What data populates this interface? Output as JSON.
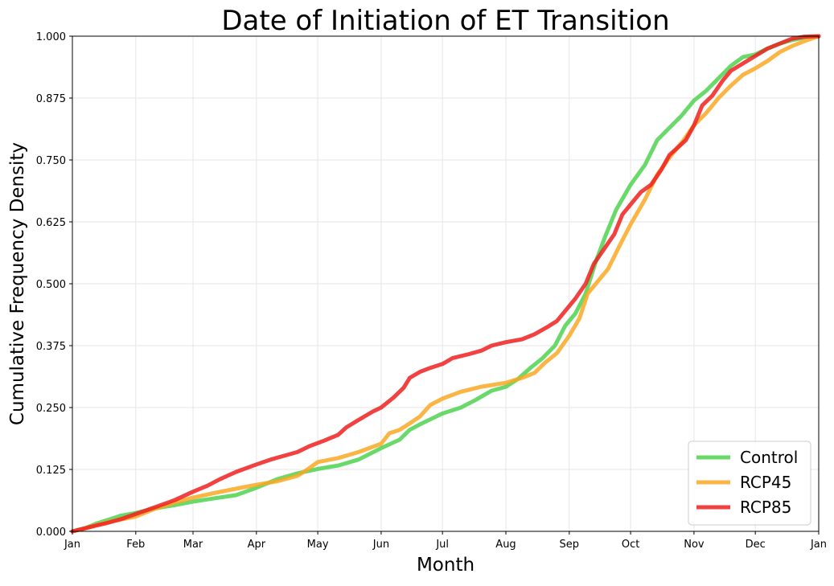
{
  "chart_data": {
    "type": "line",
    "title": "Date of Initiation of ET Transition",
    "xlabel": "Month",
    "ylabel": "Cumulative Frequency Density",
    "x_unit": "day_of_year",
    "xlim": [
      0,
      365
    ],
    "ylim": [
      0.0,
      1.0
    ],
    "grid": true,
    "legend_position": "lower right",
    "x_ticks": [
      {
        "value": 0,
        "label": "Jan"
      },
      {
        "value": 31,
        "label": "Feb"
      },
      {
        "value": 59,
        "label": "Mar"
      },
      {
        "value": 90,
        "label": "Apr"
      },
      {
        "value": 120,
        "label": "May"
      },
      {
        "value": 151,
        "label": "Jun"
      },
      {
        "value": 181,
        "label": "Jul"
      },
      {
        "value": 212,
        "label": "Aug"
      },
      {
        "value": 243,
        "label": "Sep"
      },
      {
        "value": 273,
        "label": "Oct"
      },
      {
        "value": 304,
        "label": "Nov"
      },
      {
        "value": 334,
        "label": "Dec"
      },
      {
        "value": 365,
        "label": "Jan"
      }
    ],
    "y_ticks": [
      {
        "value": 0.0,
        "label": "0.000"
      },
      {
        "value": 0.125,
        "label": "0.125"
      },
      {
        "value": 0.25,
        "label": "0.250"
      },
      {
        "value": 0.375,
        "label": "0.375"
      },
      {
        "value": 0.5,
        "label": "0.500"
      },
      {
        "value": 0.625,
        "label": "0.625"
      },
      {
        "value": 0.75,
        "label": "0.750"
      },
      {
        "value": 0.875,
        "label": "0.875"
      },
      {
        "value": 1.0,
        "label": "1.000"
      }
    ],
    "series": [
      {
        "name": "Control",
        "color": "#4fd24f",
        "points": [
          [
            0,
            0.0
          ],
          [
            6,
            0.006
          ],
          [
            12,
            0.016
          ],
          [
            18,
            0.024
          ],
          [
            24,
            0.032
          ],
          [
            31,
            0.037
          ],
          [
            40,
            0.046
          ],
          [
            50,
            0.053
          ],
          [
            59,
            0.06
          ],
          [
            70,
            0.067
          ],
          [
            80,
            0.073
          ],
          [
            90,
            0.088
          ],
          [
            100,
            0.105
          ],
          [
            110,
            0.117
          ],
          [
            120,
            0.126
          ],
          [
            130,
            0.133
          ],
          [
            140,
            0.145
          ],
          [
            151,
            0.168
          ],
          [
            160,
            0.185
          ],
          [
            165,
            0.205
          ],
          [
            170,
            0.216
          ],
          [
            181,
            0.238
          ],
          [
            190,
            0.25
          ],
          [
            197,
            0.265
          ],
          [
            205,
            0.284
          ],
          [
            212,
            0.292
          ],
          [
            218,
            0.308
          ],
          [
            224,
            0.33
          ],
          [
            230,
            0.35
          ],
          [
            236,
            0.375
          ],
          [
            241,
            0.415
          ],
          [
            246,
            0.44
          ],
          [
            251,
            0.48
          ],
          [
            256,
            0.545
          ],
          [
            261,
            0.6
          ],
          [
            266,
            0.65
          ],
          [
            273,
            0.7
          ],
          [
            280,
            0.74
          ],
          [
            286,
            0.79
          ],
          [
            292,
            0.815
          ],
          [
            298,
            0.84
          ],
          [
            304,
            0.87
          ],
          [
            310,
            0.89
          ],
          [
            316,
            0.915
          ],
          [
            322,
            0.94
          ],
          [
            328,
            0.958
          ],
          [
            334,
            0.963
          ],
          [
            340,
            0.975
          ],
          [
            346,
            0.985
          ],
          [
            352,
            0.992
          ],
          [
            358,
            0.997
          ],
          [
            365,
            1.0
          ]
        ]
      },
      {
        "name": "RCP45",
        "color": "#f9a825",
        "points": [
          [
            0,
            0.0
          ],
          [
            6,
            0.006
          ],
          [
            12,
            0.013
          ],
          [
            18,
            0.019
          ],
          [
            24,
            0.024
          ],
          [
            31,
            0.03
          ],
          [
            40,
            0.045
          ],
          [
            50,
            0.058
          ],
          [
            59,
            0.068
          ],
          [
            70,
            0.078
          ],
          [
            80,
            0.086
          ],
          [
            90,
            0.094
          ],
          [
            100,
            0.101
          ],
          [
            110,
            0.112
          ],
          [
            115,
            0.125
          ],
          [
            120,
            0.14
          ],
          [
            130,
            0.148
          ],
          [
            140,
            0.16
          ],
          [
            151,
            0.177
          ],
          [
            155,
            0.198
          ],
          [
            160,
            0.205
          ],
          [
            165,
            0.218
          ],
          [
            170,
            0.232
          ],
          [
            175,
            0.255
          ],
          [
            181,
            0.268
          ],
          [
            190,
            0.282
          ],
          [
            200,
            0.292
          ],
          [
            212,
            0.3
          ],
          [
            220,
            0.31
          ],
          [
            226,
            0.32
          ],
          [
            231,
            0.34
          ],
          [
            237,
            0.36
          ],
          [
            243,
            0.395
          ],
          [
            248,
            0.43
          ],
          [
            252,
            0.48
          ],
          [
            257,
            0.505
          ],
          [
            262,
            0.53
          ],
          [
            268,
            0.58
          ],
          [
            273,
            0.62
          ],
          [
            280,
            0.67
          ],
          [
            286,
            0.72
          ],
          [
            292,
            0.755
          ],
          [
            298,
            0.785
          ],
          [
            304,
            0.82
          ],
          [
            310,
            0.845
          ],
          [
            316,
            0.875
          ],
          [
            322,
            0.9
          ],
          [
            328,
            0.922
          ],
          [
            334,
            0.935
          ],
          [
            340,
            0.95
          ],
          [
            346,
            0.968
          ],
          [
            352,
            0.98
          ],
          [
            358,
            0.99
          ],
          [
            365,
            1.0
          ]
        ]
      },
      {
        "name": "RCP85",
        "color": "#f02020",
        "points": [
          [
            0,
            0.0
          ],
          [
            6,
            0.006
          ],
          [
            12,
            0.012
          ],
          [
            18,
            0.018
          ],
          [
            24,
            0.025
          ],
          [
            31,
            0.035
          ],
          [
            40,
            0.048
          ],
          [
            50,
            0.063
          ],
          [
            59,
            0.08
          ],
          [
            66,
            0.092
          ],
          [
            72,
            0.105
          ],
          [
            80,
            0.12
          ],
          [
            90,
            0.135
          ],
          [
            97,
            0.145
          ],
          [
            103,
            0.152
          ],
          [
            110,
            0.16
          ],
          [
            116,
            0.172
          ],
          [
            123,
            0.183
          ],
          [
            130,
            0.195
          ],
          [
            134,
            0.21
          ],
          [
            140,
            0.225
          ],
          [
            147,
            0.242
          ],
          [
            151,
            0.25
          ],
          [
            157,
            0.27
          ],
          [
            162,
            0.29
          ],
          [
            165,
            0.31
          ],
          [
            170,
            0.322
          ],
          [
            175,
            0.33
          ],
          [
            181,
            0.338
          ],
          [
            186,
            0.35
          ],
          [
            194,
            0.358
          ],
          [
            200,
            0.365
          ],
          [
            205,
            0.375
          ],
          [
            212,
            0.382
          ],
          [
            220,
            0.388
          ],
          [
            226,
            0.398
          ],
          [
            232,
            0.412
          ],
          [
            237,
            0.425
          ],
          [
            241,
            0.445
          ],
          [
            246,
            0.47
          ],
          [
            251,
            0.5
          ],
          [
            255,
            0.54
          ],
          [
            260,
            0.57
          ],
          [
            265,
            0.6
          ],
          [
            269,
            0.64
          ],
          [
            273,
            0.66
          ],
          [
            278,
            0.685
          ],
          [
            283,
            0.7
          ],
          [
            288,
            0.73
          ],
          [
            292,
            0.76
          ],
          [
            296,
            0.775
          ],
          [
            300,
            0.79
          ],
          [
            304,
            0.82
          ],
          [
            308,
            0.86
          ],
          [
            313,
            0.88
          ],
          [
            318,
            0.91
          ],
          [
            322,
            0.93
          ],
          [
            328,
            0.945
          ],
          [
            334,
            0.96
          ],
          [
            340,
            0.975
          ],
          [
            346,
            0.985
          ],
          [
            352,
            0.995
          ],
          [
            358,
            0.999
          ],
          [
            365,
            1.0
          ]
        ]
      }
    ]
  }
}
